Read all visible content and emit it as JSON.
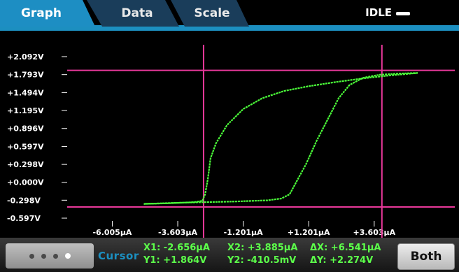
{
  "tabs": [
    {
      "label": "Graph",
      "active": true
    },
    {
      "label": "Data",
      "active": false
    },
    {
      "label": "Scale",
      "active": false
    }
  ],
  "status": {
    "text": "IDLE",
    "indicator_icon": "idle-bar-icon"
  },
  "cursor": {
    "label": "Cursor",
    "x1": "X1: -2.656µA",
    "y1": "Y1: +1.864V",
    "x2": "X2: +3.885µA",
    "y2": "Y2: -410.5mV",
    "dx": "ΔX: +6.541µA",
    "dy": "ΔY: +2.274V",
    "both_label": "Both",
    "page_dots": 4,
    "active_dot": 3
  },
  "colors": {
    "accent": "#1c8fc0",
    "trace": "#4cff3a",
    "cursor_line": "#e8389a",
    "readout": "#5cff4a"
  },
  "chart_data": {
    "type": "line",
    "title": "",
    "xlabel": "",
    "ylabel": "",
    "x_unit": "µA",
    "y_unit": "V",
    "xlim": [
      -7.3,
      6.2
    ],
    "ylim": [
      -0.597,
      2.092
    ],
    "grid": false,
    "x_ticks": [
      {
        "value": -6.005,
        "label": "-6.005µA"
      },
      {
        "value": -3.603,
        "label": "-3.603µA"
      },
      {
        "value": -1.201,
        "label": "-1.201µA"
      },
      {
        "value": 1.201,
        "label": "+1.201µA"
      },
      {
        "value": 3.603,
        "label": "+3.603µA"
      }
    ],
    "y_ticks": [
      {
        "value": 2.092,
        "label": "+2.092V"
      },
      {
        "value": 1.793,
        "label": "+1.793V"
      },
      {
        "value": 1.494,
        "label": "+1.494V"
      },
      {
        "value": 1.195,
        "label": "+1.195V"
      },
      {
        "value": 0.896,
        "label": "+0.896V"
      },
      {
        "value": 0.597,
        "label": "+0.597V"
      },
      {
        "value": 0.298,
        "label": "+0.298V"
      },
      {
        "value": 0.0,
        "label": "+0.000V"
      },
      {
        "value": -0.298,
        "label": "-0.298V"
      },
      {
        "value": -0.597,
        "label": "-0.597V"
      }
    ],
    "cursors": {
      "x1": -2.656,
      "x2": 3.885,
      "y1": 1.864,
      "y2": -0.4105
    },
    "series": [
      {
        "x": [
          -4.85,
          -4.0,
          -3.0,
          -2.7,
          -2.6,
          -2.5,
          -2.4,
          -2.2,
          -1.8,
          -1.2,
          -0.5,
          0.3,
          1.2,
          2.2,
          3.2,
          4.2,
          5.2
        ],
        "y": [
          -0.36,
          -0.35,
          -0.33,
          -0.31,
          -0.2,
          0.05,
          0.4,
          0.65,
          0.95,
          1.22,
          1.4,
          1.52,
          1.6,
          1.67,
          1.73,
          1.78,
          1.82
        ]
      },
      {
        "x": [
          5.2,
          4.5,
          3.8,
          3.2,
          2.7,
          2.3,
          1.9,
          1.5,
          1.1,
          0.8,
          0.5,
          0.2,
          -0.3,
          -1.5,
          -2.6,
          -3.5,
          -4.85
        ],
        "y": [
          1.82,
          1.81,
          1.79,
          1.74,
          1.62,
          1.4,
          1.05,
          0.7,
          0.3,
          0.05,
          -0.2,
          -0.27,
          -0.3,
          -0.32,
          -0.33,
          -0.34,
          -0.36
        ]
      }
    ]
  }
}
